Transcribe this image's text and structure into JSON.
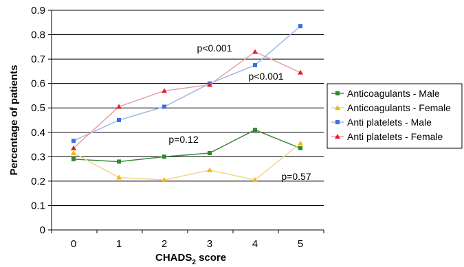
{
  "chart_data": {
    "type": "line",
    "title": "",
    "xlabel_main": "CHADS",
    "xlabel_sub": "2",
    "xlabel_suffix": " score",
    "ylabel": "Percentage of patients",
    "x": [
      0,
      1,
      2,
      3,
      4,
      5
    ],
    "ylim": [
      0,
      0.9
    ],
    "yticks": [
      "0",
      "0.1",
      "0.2",
      "0.3",
      "0.4",
      "0.5",
      "0.6",
      "0.7",
      "0.8",
      "0.9"
    ],
    "ytick_values": [
      0,
      0.1,
      0.2,
      0.3,
      0.4,
      0.5,
      0.6,
      0.7,
      0.8,
      0.9
    ],
    "grid": "horizontal",
    "legend_position": "right",
    "series": [
      {
        "name": "Anticoagulants - Male",
        "values": [
          0.29,
          0.28,
          0.3,
          0.315,
          0.41,
          0.335
        ],
        "line_color": "#3a8a3a",
        "marker_color": "#2e8b2e",
        "marker": "square"
      },
      {
        "name": "Anticoagulants - Female",
        "values": [
          0.315,
          0.215,
          0.205,
          0.245,
          0.205,
          0.355
        ],
        "line_color": "#f3d58a",
        "marker_color": "#f5b800",
        "marker": "triangle"
      },
      {
        "name": "Anti platelets - Male",
        "values": [
          0.365,
          0.45,
          0.505,
          0.6,
          0.675,
          0.835
        ],
        "line_color": "#9fb8e8",
        "marker_color": "#3d6fe0",
        "marker": "square"
      },
      {
        "name": "Anti platelets - Female",
        "values": [
          0.335,
          0.505,
          0.57,
          0.595,
          0.73,
          0.645
        ],
        "line_color": "#e8a0a8",
        "marker_color": "#e0202a",
        "marker": "triangle"
      }
    ],
    "annotations": [
      {
        "text": "p<0.001"
      },
      {
        "text": "p<0.001"
      },
      {
        "text": "p=0.12"
      },
      {
        "text": "p=0.57"
      }
    ]
  }
}
